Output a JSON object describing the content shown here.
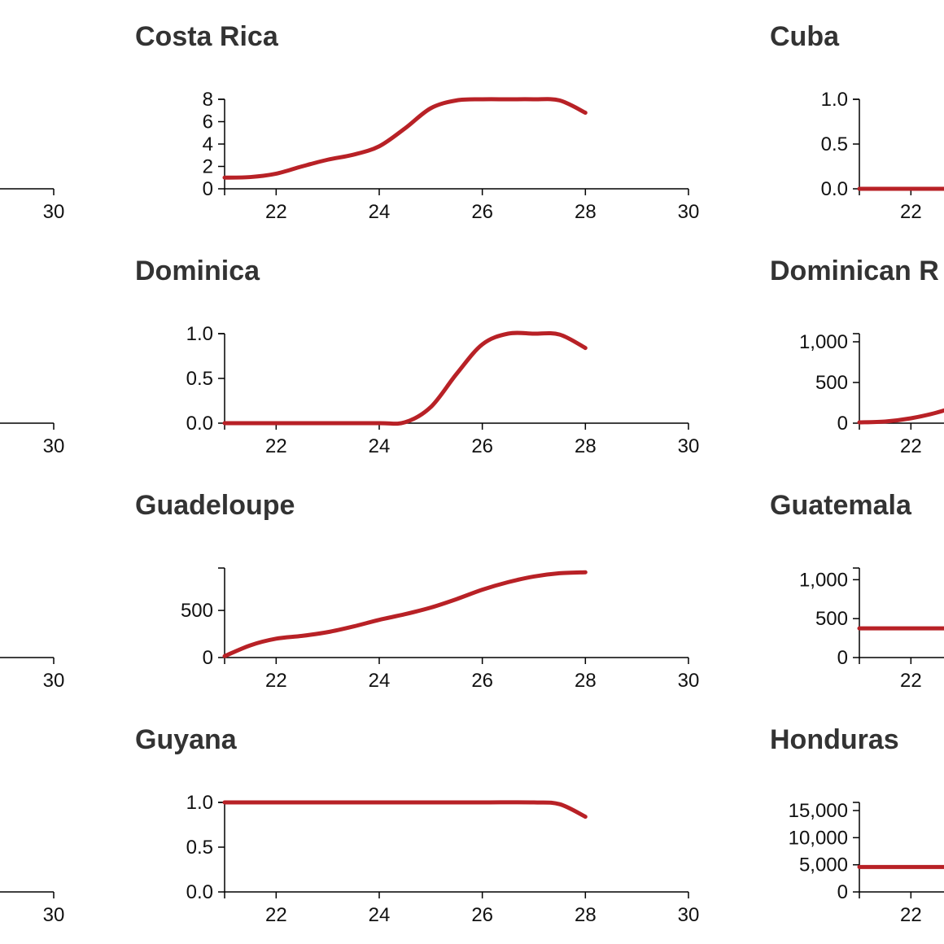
{
  "colors": {
    "line": "#b82126",
    "title": "#333333",
    "axis": "#000000"
  },
  "chart_data": [
    {
      "type": "line",
      "title": "Costa Rica",
      "xlim": [
        21,
        30
      ],
      "x_ticks": [
        22,
        24,
        26,
        28,
        30
      ],
      "ylim": [
        0,
        8
      ],
      "y_ticks": [
        0,
        2,
        4,
        6,
        8
      ],
      "y_tick_labels": [
        "0",
        "2",
        "4",
        "6",
        "8"
      ],
      "series": [
        {
          "x": [
            21,
            21.5,
            22,
            22.5,
            23,
            23.5,
            24,
            24.5,
            25,
            25.5,
            26,
            26.5,
            27,
            27.5,
            28
          ],
          "values": [
            1,
            1.05,
            1.35,
            2,
            2.6,
            3.05,
            3.8,
            5.4,
            7.2,
            7.9,
            8,
            8,
            8,
            7.9,
            6.8
          ]
        }
      ]
    },
    {
      "type": "line",
      "title": "Cuba",
      "xlim": [
        21,
        30
      ],
      "x_ticks": [
        22,
        24,
        26,
        28,
        30
      ],
      "ylim": [
        0,
        1
      ],
      "y_ticks": [
        0,
        0.5,
        1
      ],
      "y_tick_labels": [
        "0.0",
        "0.5",
        "1.0"
      ],
      "series": [
        {
          "x": [
            21,
            22,
            23
          ],
          "values": [
            0,
            0,
            0
          ]
        }
      ]
    },
    {
      "type": "line",
      "title": "Dominica",
      "xlim": [
        21,
        30
      ],
      "x_ticks": [
        22,
        24,
        26,
        28,
        30
      ],
      "ylim": [
        0,
        1
      ],
      "y_ticks": [
        0,
        0.5,
        1
      ],
      "y_tick_labels": [
        "0.0",
        "0.5",
        "1.0"
      ],
      "series": [
        {
          "x": [
            21,
            22,
            23,
            24,
            24.5,
            25,
            25.5,
            26,
            26.5,
            27,
            27.5,
            28
          ],
          "values": [
            0,
            0,
            0,
            0,
            0.01,
            0.18,
            0.55,
            0.88,
            1,
            1,
            0.99,
            0.84
          ]
        }
      ]
    },
    {
      "type": "line",
      "title": "Dominican R",
      "xlim": [
        21,
        30
      ],
      "x_ticks": [
        22,
        24,
        26,
        28,
        30
      ],
      "ylim": [
        0,
        1100
      ],
      "y_ticks": [
        0,
        500,
        1000
      ],
      "y_tick_labels": [
        "0",
        "500",
        "1,000"
      ],
      "series": [
        {
          "x": [
            21,
            21.5,
            22,
            22.5,
            23
          ],
          "values": [
            10,
            20,
            60,
            130,
            230
          ]
        }
      ]
    },
    {
      "type": "line",
      "title": "Guadeloupe",
      "xlim": [
        21,
        30
      ],
      "x_ticks": [
        22,
        24,
        26,
        28,
        30
      ],
      "ylim": [
        0,
        950
      ],
      "y_ticks": [
        0,
        500
      ],
      "y_tick_labels": [
        "0",
        "500"
      ],
      "series": [
        {
          "x": [
            21,
            21.5,
            22,
            22.5,
            23,
            23.5,
            24,
            24.5,
            25,
            25.5,
            26,
            26.5,
            27,
            27.5,
            28
          ],
          "values": [
            15,
            130,
            200,
            230,
            270,
            330,
            400,
            460,
            530,
            620,
            720,
            800,
            860,
            895,
            905
          ]
        }
      ]
    },
    {
      "type": "line",
      "title": "Guatemala",
      "xlim": [
        21,
        30
      ],
      "x_ticks": [
        22,
        24,
        26,
        28,
        30
      ],
      "ylim": [
        0,
        1150
      ],
      "y_ticks": [
        0,
        500,
        1000
      ],
      "y_tick_labels": [
        "0",
        "500",
        "1,000"
      ],
      "series": [
        {
          "x": [
            21,
            22,
            23
          ],
          "values": [
            375,
            375,
            375
          ]
        }
      ]
    },
    {
      "type": "line",
      "title": "Guyana",
      "xlim": [
        21,
        30
      ],
      "x_ticks": [
        22,
        24,
        26,
        28,
        30
      ],
      "ylim": [
        0,
        1
      ],
      "y_ticks": [
        0,
        0.5,
        1
      ],
      "y_tick_labels": [
        "0.0",
        "0.5",
        "1.0"
      ],
      "series": [
        {
          "x": [
            21,
            22,
            23,
            24,
            25,
            26,
            27,
            27.5,
            28
          ],
          "values": [
            1,
            1,
            1,
            1,
            1,
            1,
            1,
            0.98,
            0.84
          ]
        }
      ]
    },
    {
      "type": "line",
      "title": "Honduras",
      "xlim": [
        21,
        30
      ],
      "x_ticks": [
        22,
        24,
        26,
        28,
        30
      ],
      "ylim": [
        0,
        16500
      ],
      "y_ticks": [
        0,
        5000,
        10000,
        15000
      ],
      "y_tick_labels": [
        "0",
        "5,000",
        "10,000",
        "15,000"
      ],
      "series": [
        {
          "x": [
            21,
            22,
            23
          ],
          "values": [
            4600,
            4600,
            4600
          ]
        }
      ]
    }
  ],
  "left_column_tick_label": "30"
}
